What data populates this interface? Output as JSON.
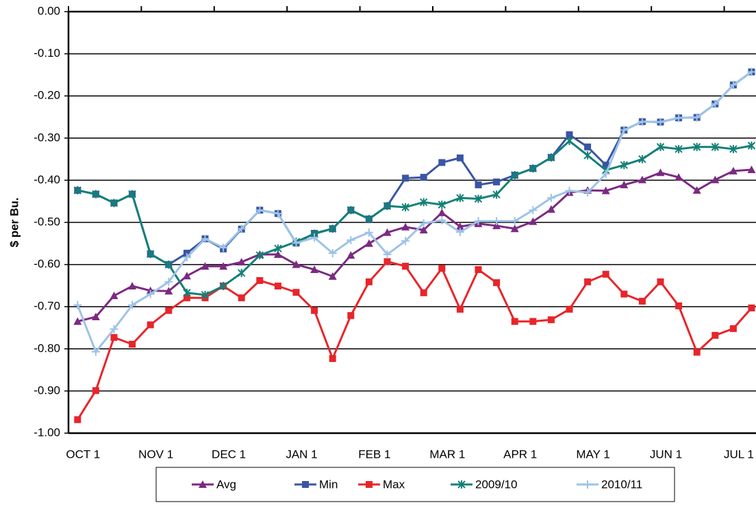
{
  "chart_data": {
    "type": "line",
    "y_label": "$ per Bu.",
    "categories": [
      "OCT 1",
      null,
      null,
      null,
      "NOV 1",
      null,
      null,
      null,
      "DEC 1",
      null,
      null,
      null,
      "JAN 1",
      null,
      null,
      null,
      "FEB 1",
      null,
      null,
      null,
      "MAR 1",
      null,
      null,
      null,
      "APR 1",
      null,
      null,
      null,
      "MAY 1",
      null,
      null,
      null,
      "JUN 1",
      null,
      null,
      null,
      "JUL 1",
      null
    ],
    "ylim": [
      -1,
      0
    ],
    "yticks": [
      {
        "value": 0,
        "label": "0.00"
      },
      {
        "value": -0.1,
        "label": "-0.10"
      },
      {
        "value": -0.2,
        "label": "-0.20"
      },
      {
        "value": -0.3,
        "label": "-0.30"
      },
      {
        "value": -0.4,
        "label": "-0.40"
      },
      {
        "value": -0.5,
        "label": "-0.50"
      },
      {
        "value": -0.6,
        "label": "-0.60"
      },
      {
        "value": -0.7,
        "label": "-0.70"
      },
      {
        "value": -0.8,
        "label": "-0.80"
      },
      {
        "value": -0.9,
        "label": "-0.90"
      },
      {
        "value": -1,
        "label": "-1.00"
      }
    ],
    "grid": true,
    "legend": "bottom",
    "series": [
      {
        "name": "Avg",
        "color": "#7b2a82",
        "marker": "triangle",
        "values": [
          -0.735,
          -0.724,
          -0.674,
          -0.651,
          -0.662,
          -0.663,
          -0.627,
          -0.604,
          -0.604,
          -0.594,
          -0.576,
          -0.576,
          -0.6,
          -0.612,
          -0.628,
          -0.578,
          -0.55,
          -0.524,
          -0.511,
          -0.518,
          -0.477,
          -0.51,
          -0.503,
          -0.508,
          -0.515,
          -0.498,
          -0.469,
          -0.429,
          -0.424,
          -0.425,
          -0.411,
          -0.399,
          -0.382,
          -0.393,
          -0.424,
          -0.399,
          -0.378,
          -0.375
        ]
      },
      {
        "name": "Min",
        "color": "#3a55a4",
        "marker": "square",
        "values": [
          -0.424,
          -0.433,
          -0.454,
          -0.433,
          -0.575,
          -0.6,
          -0.573,
          -0.539,
          -0.563,
          -0.516,
          -0.471,
          -0.479,
          -0.549,
          -0.526,
          -0.515,
          -0.471,
          -0.492,
          -0.461,
          -0.395,
          -0.393,
          -0.358,
          -0.347,
          -0.411,
          -0.404,
          -0.388,
          -0.372,
          -0.346,
          -0.292,
          -0.321,
          -0.364,
          -0.281,
          -0.261,
          -0.262,
          -0.252,
          -0.251,
          -0.219,
          -0.174,
          -0.143
        ]
      },
      {
        "name": "Max",
        "color": "#e8252a",
        "marker": "square",
        "values": [
          -0.968,
          -0.899,
          -0.773,
          -0.789,
          -0.743,
          -0.709,
          -0.679,
          -0.679,
          -0.651,
          -0.679,
          -0.638,
          -0.651,
          -0.666,
          -0.709,
          -0.823,
          -0.721,
          -0.641,
          -0.593,
          -0.604,
          -0.667,
          -0.609,
          -0.706,
          -0.612,
          -0.643,
          -0.735,
          -0.735,
          -0.731,
          -0.706,
          -0.641,
          -0.623,
          -0.67,
          -0.687,
          -0.641,
          -0.698,
          -0.808,
          -0.768,
          -0.752,
          -0.703
        ]
      },
      {
        "name": "2009/10",
        "color": "#138077",
        "marker": "star",
        "values": [
          -0.424,
          -0.433,
          -0.454,
          -0.433,
          -0.575,
          -0.6,
          -0.667,
          -0.672,
          -0.651,
          -0.62,
          -0.578,
          -0.562,
          -0.546,
          -0.527,
          -0.515,
          -0.471,
          -0.492,
          -0.461,
          -0.464,
          -0.452,
          -0.458,
          -0.442,
          -0.444,
          -0.434,
          -0.388,
          -0.372,
          -0.346,
          -0.307,
          -0.341,
          -0.376,
          -0.364,
          -0.35,
          -0.321,
          -0.326,
          -0.321,
          -0.321,
          -0.326,
          -0.318
        ]
      },
      {
        "name": "2010/11",
        "color": "#9dc3e6",
        "marker": "plus",
        "values": [
          -0.696,
          -0.807,
          -0.753,
          -0.696,
          -0.67,
          -0.641,
          -0.583,
          -0.539,
          -0.56,
          -0.515,
          -0.471,
          -0.479,
          -0.549,
          -0.536,
          -0.573,
          -0.542,
          -0.524,
          -0.576,
          -0.544,
          -0.502,
          -0.495,
          -0.523,
          -0.497,
          -0.497,
          -0.497,
          -0.471,
          -0.442,
          -0.425,
          -0.429,
          -0.385,
          -0.281,
          -0.261,
          -0.262,
          -0.252,
          -0.251,
          -0.219,
          -0.174,
          -0.143
        ]
      }
    ]
  }
}
